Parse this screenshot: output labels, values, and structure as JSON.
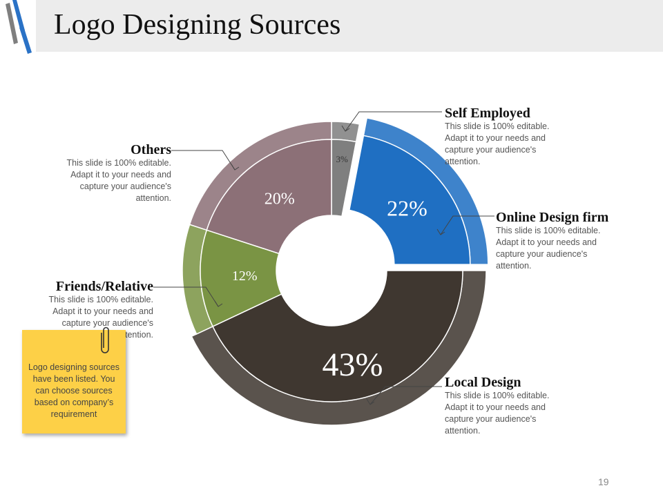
{
  "slide": {
    "title": "Logo Designing Sources",
    "page_number": "19",
    "sticky_note": "Logo designing sources have been listed. You can choose sources based on company’s requirement"
  },
  "callouts": {
    "self_employed": {
      "title": "Self Employed",
      "body": "This slide is 100% editable. Adapt it to your needs and capture your audience's attention."
    },
    "online_design_firm": {
      "title": "Online Design firm",
      "body": "This slide is 100% editable. Adapt it to your needs and capture your audience's attention."
    },
    "local_design": {
      "title": "Local Design",
      "body": "This slide is 100% editable. Adapt it to your needs and capture your audience's attention."
    },
    "friends_relative": {
      "title": "Friends/Relative",
      "body": "This slide is 100% editable. Adapt it to your needs and capture your audience's attention."
    },
    "others": {
      "title": "Others",
      "body": "This slide is 100% editable. Adapt it to your needs and capture your audience's attention."
    }
  },
  "chart_data": {
    "type": "pie",
    "style": "donut",
    "start": "top, clockwise",
    "categories": [
      "Self Employed",
      "Online Design firm",
      "Local Design",
      "Friends/Relative",
      "Others"
    ],
    "values": [
      3,
      22,
      43,
      12,
      20
    ],
    "labels": [
      "3%",
      "22%",
      "43%",
      "12%",
      "20%"
    ],
    "colors": [
      "#7f7f7f",
      "#1f6fc2",
      "#3f3730",
      "#7a9444",
      "#8c7077"
    ]
  }
}
